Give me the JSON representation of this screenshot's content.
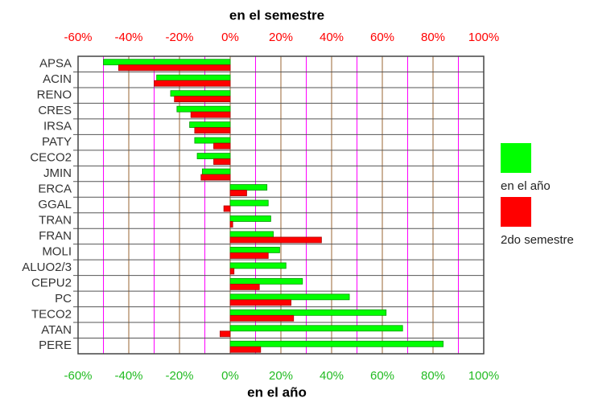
{
  "chart_data": {
    "type": "barh",
    "title": "en el semestre",
    "x_label": "en el año",
    "categories": [
      "APSA",
      "ACIN",
      "RENO",
      "CRES",
      "IRSA",
      "PATY",
      "CECO2",
      "JMIN",
      "ERCA",
      "GGAL",
      "TRAN",
      "FRAN",
      "MOLI",
      "ALUO2/3",
      "CEPU2",
      "PC",
      "TECO2",
      "ATAN",
      "PERE"
    ],
    "series": [
      {
        "name": "en el año",
        "color": "#00ff00",
        "axis": "x",
        "values": [
          -50,
          -29,
          -23.5,
          -21,
          -16,
          -14,
          -13,
          -11,
          14.5,
          15,
          16,
          17,
          19.5,
          22,
          28.5,
          47,
          61.5,
          68,
          84
        ]
      },
      {
        "name": "2do semestre",
        "color": "#ff0000",
        "axis": "x2",
        "values": [
          -44,
          -30,
          -22,
          -15.5,
          -14,
          -6.5,
          -6.5,
          -11.5,
          6.5,
          -2.5,
          1,
          36,
          15,
          1.5,
          11.5,
          24,
          25,
          -4,
          12
        ]
      }
    ],
    "xlim": [
      -60,
      100
    ],
    "xticks": [
      {
        "value": -60,
        "label": "-60%"
      },
      {
        "value": -40,
        "label": "-40%"
      },
      {
        "value": -20,
        "label": "-20%"
      },
      {
        "value": 0,
        "label": "0%"
      },
      {
        "value": 20,
        "label": "20%"
      },
      {
        "value": 40,
        "label": "40%"
      },
      {
        "value": 60,
        "label": "60%"
      },
      {
        "value": 80,
        "label": "80%"
      },
      {
        "value": 100,
        "label": "100%"
      }
    ],
    "x2lim": [
      -60,
      100
    ],
    "x2ticks": [
      {
        "value": -60,
        "label": "-60%"
      },
      {
        "value": -40,
        "label": "-40%"
      },
      {
        "value": -20,
        "label": "-20%"
      },
      {
        "value": 0,
        "label": "0%"
      },
      {
        "value": 20,
        "label": "20%"
      },
      {
        "value": 40,
        "label": "40%"
      },
      {
        "value": 60,
        "label": "60%"
      },
      {
        "value": 80,
        "label": "80%"
      },
      {
        "value": 100,
        "label": "100%"
      }
    ],
    "grid": true
  }
}
